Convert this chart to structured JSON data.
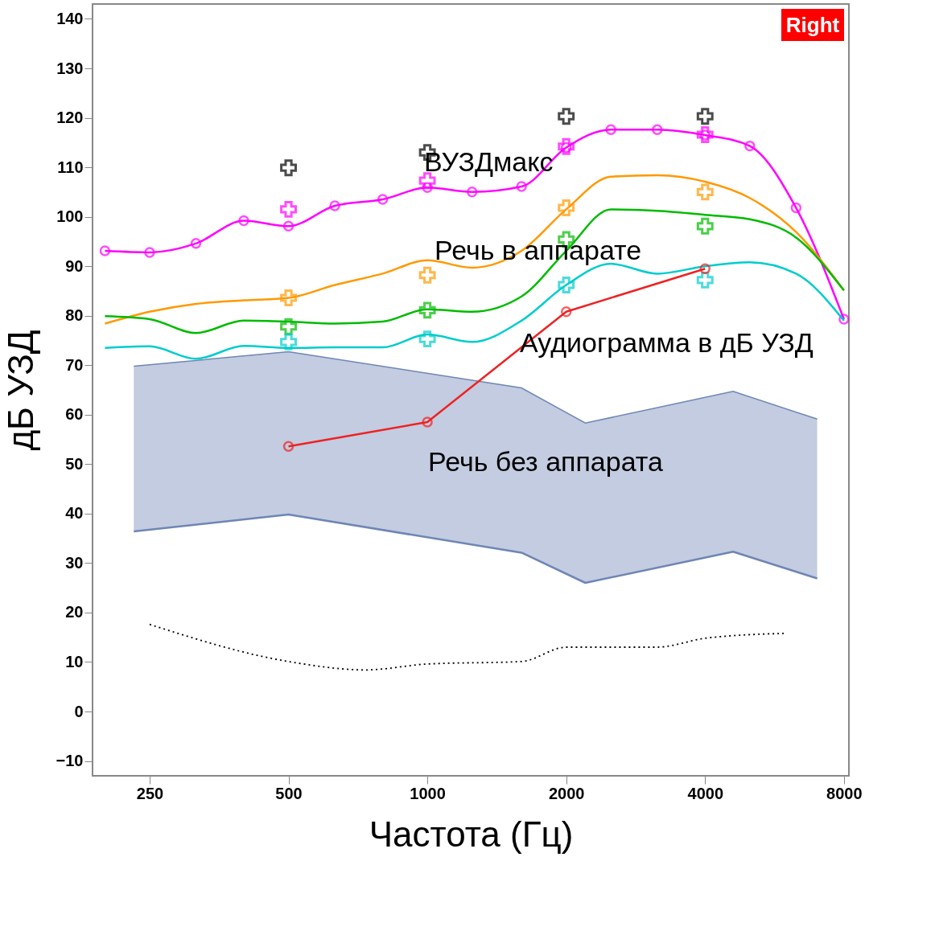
{
  "chart_data": {
    "type": "line",
    "xlabel": "Частота (Гц)",
    "ylabel": "дБ УЗД",
    "log": "x",
    "xlim": [
      188,
      8200
    ],
    "xticks": [
      250,
      500,
      1000,
      2000,
      4000,
      8000
    ],
    "ylim": [
      -13,
      143
    ],
    "yticks": [
      -10,
      0,
      10,
      20,
      30,
      40,
      50,
      60,
      70,
      80,
      90,
      100,
      110,
      120,
      130,
      140
    ],
    "series": [
      {
        "type": "line",
        "color": "#6f86b5",
        "line_style": "solid",
        "marker": "none",
        "x": [
          231,
          500,
          1600,
          2200,
          4600,
          7000
        ],
        "values": [
          36.4,
          39.8,
          32.1,
          26.0,
          32.3,
          26.9
        ]
      },
      {
        "type": "area",
        "color": "#6f86b5",
        "x": [
          231,
          500,
          1600,
          2200,
          4600,
          7000
        ],
        "values": [
          69.8,
          72.7,
          65.4,
          58.3,
          64.7,
          59.1
        ]
      },
      {
        "type": "line",
        "color": "#000000",
        "line_style": "dotted",
        "marker": "none",
        "x": [
          250,
          500,
          734,
          1000,
          1600,
          2000,
          3150,
          4000,
          6000
        ],
        "values": [
          17.6,
          10.1,
          8.4,
          9.6,
          10.1,
          13.0,
          13.0,
          14.8,
          15.8
        ]
      },
      {
        "color": "#ff00ff",
        "line_style": "solid",
        "marker": "circle",
        "x": [
          200,
          250,
          315,
          400,
          500,
          630,
          800,
          1000,
          1250,
          1600,
          2000,
          2500,
          3150,
          4000,
          5000,
          6300,
          8000
        ],
        "values": [
          93.1,
          92.8,
          94.6,
          99.2,
          98.1,
          102.2,
          103.5,
          105.9,
          105.0,
          106.1,
          114.0,
          117.6,
          117.6,
          116.5,
          114.3,
          101.8,
          79.3
        ]
      },
      {
        "color": "#ff9900",
        "line_style": "solid",
        "marker": "none",
        "x": [
          200,
          250,
          315,
          400,
          500,
          630,
          800,
          1000,
          1250,
          1600,
          2000,
          2500,
          3150,
          4000,
          5000,
          6300,
          8000
        ],
        "values": [
          78.4,
          80.8,
          82.4,
          83.1,
          83.6,
          86.2,
          88.5,
          91.2,
          89.7,
          93.1,
          101.5,
          108.1,
          108.4,
          107.1,
          103.8,
          96.9,
          85.1
        ]
      },
      {
        "color": "#00bb00",
        "line_style": "solid",
        "marker": "none",
        "x": [
          200,
          250,
          315,
          400,
          500,
          630,
          800,
          1000,
          1250,
          1600,
          2000,
          2500,
          3150,
          4000,
          5000,
          6300,
          8000
        ],
        "values": [
          79.9,
          79.3,
          76.5,
          79.0,
          78.8,
          78.4,
          78.8,
          81.3,
          80.8,
          83.9,
          93.1,
          101.5,
          101.2,
          100.4,
          99.5,
          95.8,
          85.1
        ]
      },
      {
        "color": "#00cccc",
        "line_style": "solid",
        "marker": "none",
        "x": [
          200,
          250,
          315,
          400,
          500,
          630,
          800,
          1000,
          1250,
          1600,
          2000,
          2500,
          3150,
          4000,
          5000,
          6300,
          8000
        ],
        "values": [
          73.5,
          73.8,
          71.3,
          73.9,
          73.5,
          73.6,
          73.6,
          76.2,
          74.7,
          79.0,
          86.2,
          90.5,
          88.5,
          90.0,
          90.8,
          88.5,
          79.0
        ]
      },
      {
        "type": "scatter",
        "color": "#ff00ff",
        "marker": "cross",
        "x": [
          500,
          1000,
          2000,
          4000
        ],
        "values": [
          101.5,
          107.3,
          114.2,
          116.6
        ]
      },
      {
        "type": "scatter",
        "color": "#ff9900",
        "marker": "cross",
        "x": [
          500,
          1000,
          2000,
          4000
        ],
        "values": [
          83.6,
          88.2,
          101.8,
          105.0
        ]
      },
      {
        "type": "scatter",
        "color": "#00bb00",
        "marker": "cross",
        "x": [
          500,
          1000,
          2000,
          4000
        ],
        "values": [
          77.8,
          81.1,
          95.4,
          98.1
        ]
      },
      {
        "type": "scatter",
        "color": "#00cccc",
        "marker": "cross",
        "x": [
          500,
          1000,
          2000,
          4000
        ],
        "values": [
          74.7,
          75.3,
          86.2,
          87.2
        ]
      },
      {
        "type": "scatter",
        "color": "#000000",
        "marker": "cross",
        "x": [
          500,
          1000,
          2000,
          4000
        ],
        "values": [
          109.9,
          113.0,
          120.3,
          120.3
        ]
      },
      {
        "color": "#ee2222",
        "line_style": "solid",
        "marker": "circle",
        "x": [
          500,
          1000,
          2000,
          4000
        ],
        "values": [
          53.6,
          58.5,
          80.8,
          89.5
        ]
      }
    ],
    "annotations": [
      "ВУЗДмакс",
      "Речь в аппарате",
      "Аудиограмма в дБ УЗД",
      "Речь без аппарата",
      "Right"
    ]
  }
}
